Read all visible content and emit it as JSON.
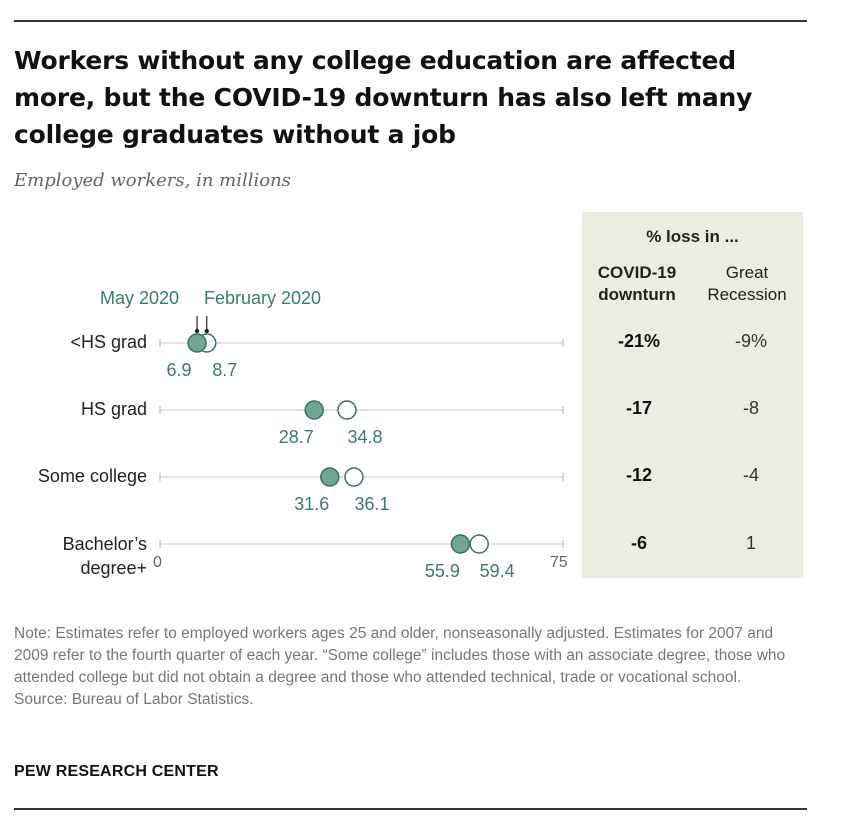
{
  "title": "Workers without any college education are affected more, but the COVID-19 downturn has also left many college graduates without a job",
  "subtitle": "Employed workers, in millions",
  "legend": {
    "may": "May 2020",
    "feb": "February 2020"
  },
  "axis": {
    "min_label": "0",
    "max_label": "75"
  },
  "side_panel": {
    "title": "% loss in ...",
    "col_covid": "COVID-19 downturn",
    "col_recession": "Great Recession"
  },
  "note": "Note: Estimates refer to employed workers ages 25 and older, nonseasonally adjusted. Estimates for 2007 and 2009 refer to the fourth quarter of each year. “Some college” includes those with an associate degree, those who attended college but did not obtain a degree and those who attended technical, trade or vocational school.",
  "source": "Source: Bureau of Labor Statistics.",
  "credit": "PEW RESEARCH CENTER",
  "colors": {
    "may": "#6fa595",
    "feb": "#ffffff",
    "accent_text": "#3c7a6e",
    "panel": "#ecece1"
  },
  "chart_data": {
    "type": "scatter",
    "xlim": [
      0,
      75
    ],
    "categories": [
      "<HS grad",
      "HS grad",
      "Some college",
      "Bachelor’s degree+"
    ],
    "series": [
      {
        "name": "May 2020",
        "values": [
          6.9,
          28.7,
          31.6,
          55.9
        ]
      },
      {
        "name": "February 2020",
        "values": [
          8.7,
          34.8,
          36.1,
          59.4
        ]
      }
    ],
    "value_labels": {
      "may": [
        "6.9",
        "28.7",
        "31.6",
        "55.9"
      ],
      "feb": [
        "8.7",
        "34.8",
        "36.1",
        "59.4"
      ]
    },
    "pct_loss": {
      "covid": [
        "-21%",
        "-17",
        "-12",
        "-6"
      ],
      "recession": [
        "-9%",
        "-8",
        "-4",
        "1"
      ]
    }
  }
}
